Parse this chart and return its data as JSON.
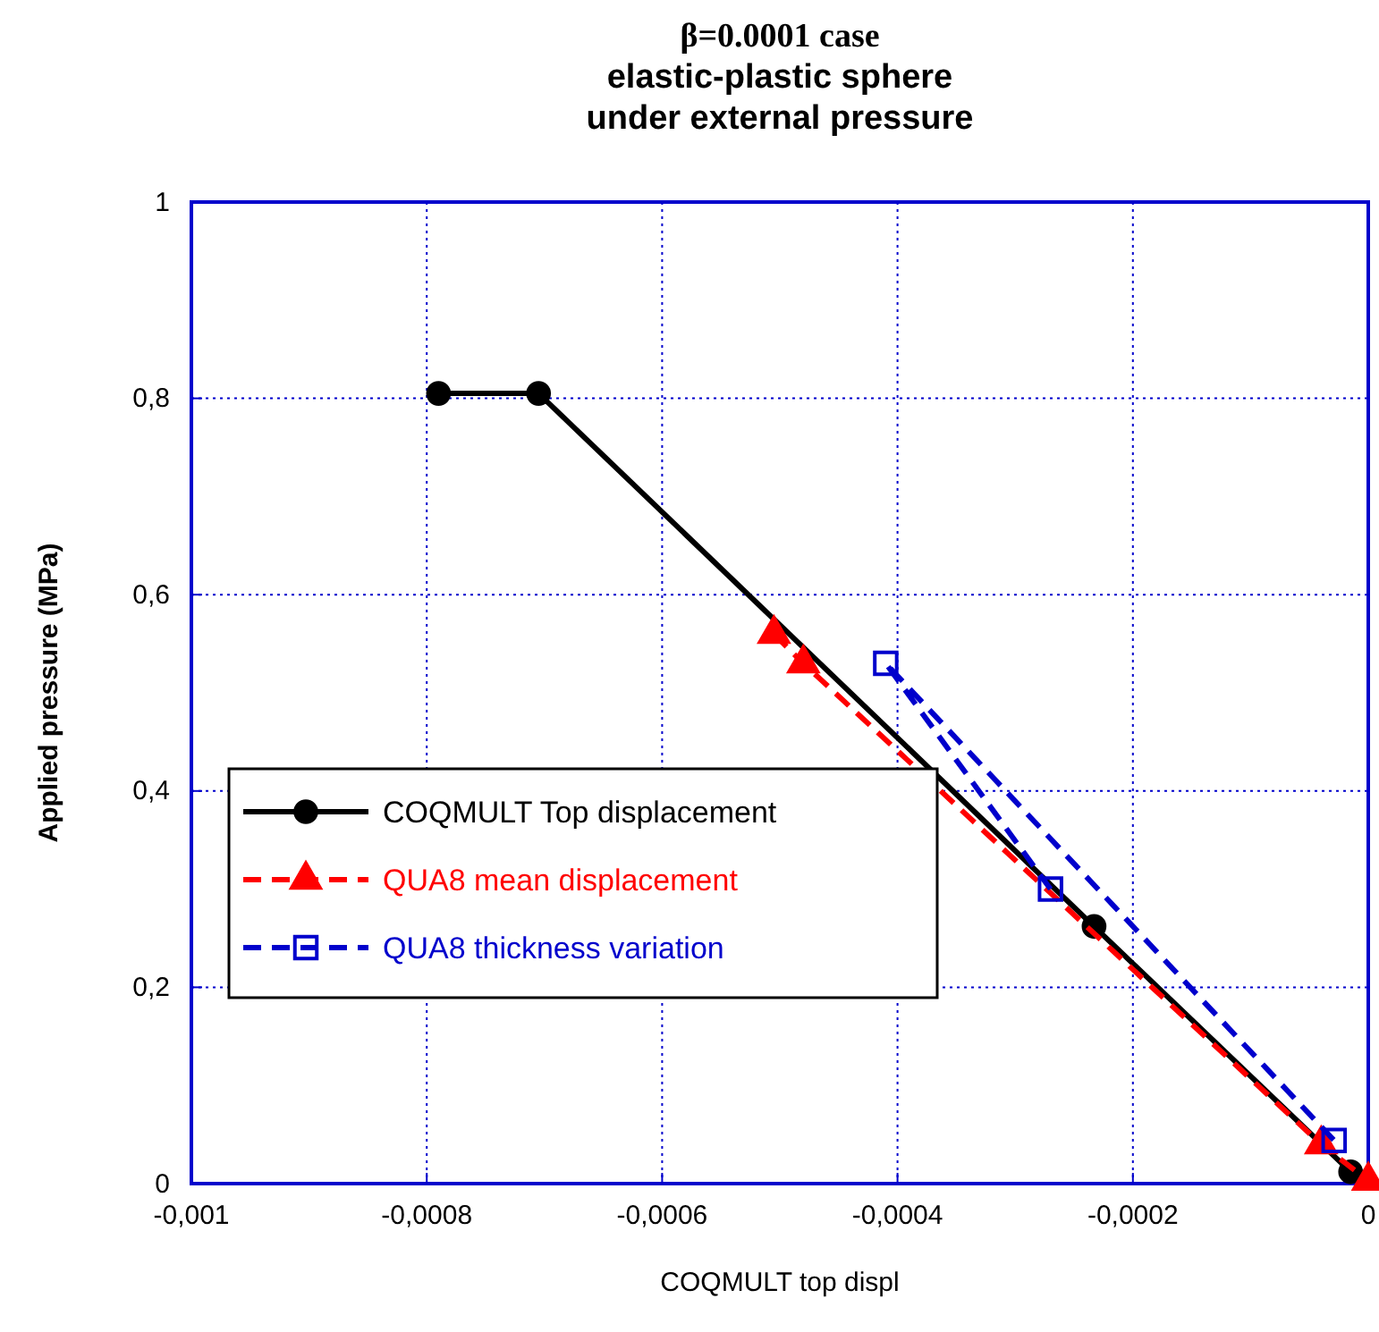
{
  "chart_data": {
    "type": "line",
    "title": "β=0.0001 case\nelastic-plastic sphere\nunder external pressure",
    "xlabel": "COQMULT top displ",
    "ylabel": "Applied pressure (MPa)",
    "xlim": [
      -0.001,
      0
    ],
    "xticks": [
      {
        "value": -0.001,
        "label": "-0,001"
      },
      {
        "value": -0.0008,
        "label": "-0,0008"
      },
      {
        "value": -0.0006,
        "label": "-0,0006"
      },
      {
        "value": -0.0004,
        "label": "-0,0004"
      },
      {
        "value": -0.0002,
        "label": "-0,0002"
      },
      0
    ],
    "ylim": [
      0,
      1
    ],
    "yticks": [
      0,
      {
        "value": 0.2,
        "label": "0,2"
      },
      {
        "value": 0.4,
        "label": "0,4"
      },
      {
        "value": 0.6,
        "label": "0,6"
      },
      {
        "value": 0.8,
        "label": "0,8"
      },
      1
    ],
    "grid": true,
    "legend": "center left",
    "series": [
      {
        "name": "COQMULT  Top displacement",
        "color": "#000000",
        "marker": "circle",
        "line_style": "solid",
        "x": [
          -0.00079,
          -0.000705,
          -0.000233,
          -1.5e-05
        ],
        "values": [
          0.805,
          0.805,
          0.262,
          0.012
        ]
      },
      {
        "name": "QUA8 mean displacement",
        "color": "#ff0000",
        "marker": "triangle",
        "line_style": "dashed",
        "x": [
          -0.000505,
          -0.00048,
          -4e-05,
          0
        ],
        "values": [
          0.56,
          0.53,
          0.04,
          0.003
        ]
      },
      {
        "name": "QUA8 thickness variation",
        "color": "#0000cc",
        "marker": "square",
        "line_style": "dashed",
        "x": [
          -0.00027,
          -0.00041,
          -2.9e-05
        ],
        "values": [
          0.3,
          0.53,
          0.044
        ]
      }
    ]
  }
}
